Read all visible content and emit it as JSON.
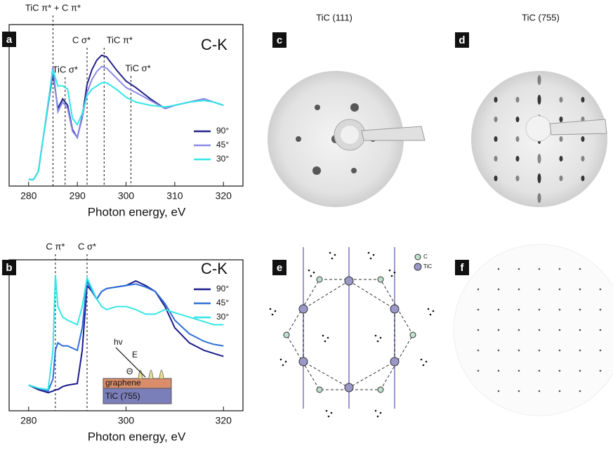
{
  "chart_data": [
    {
      "type": "line",
      "panel": "a",
      "title": "C-K",
      "x_label": "Photon energy, eV",
      "xlim": [
        276,
        324
      ],
      "ylim": [
        0,
        1
      ],
      "xticks": [
        280,
        290,
        300,
        310,
        320
      ],
      "legend": "right",
      "x": [
        280,
        281,
        282,
        283,
        284,
        285,
        286,
        287,
        288,
        289,
        290,
        291,
        292,
        293,
        294,
        295,
        296,
        297,
        298,
        300,
        302,
        305,
        308,
        310,
        313,
        316,
        318,
        320
      ],
      "series": [
        {
          "name": "90°",
          "color": "#22228a",
          "values": [
            0.04,
            0.04,
            0.09,
            0.3,
            0.5,
            0.7,
            0.48,
            0.54,
            0.5,
            0.35,
            0.3,
            0.43,
            0.63,
            0.72,
            0.78,
            0.81,
            0.8,
            0.76,
            0.72,
            0.65,
            0.61,
            0.54,
            0.48,
            0.5,
            0.52,
            0.54,
            0.52,
            0.5
          ]
        },
        {
          "name": "45°",
          "color": "#8a8ae8",
          "values": [
            0.04,
            0.04,
            0.09,
            0.3,
            0.5,
            0.74,
            0.46,
            0.52,
            0.48,
            0.34,
            0.3,
            0.42,
            0.58,
            0.66,
            0.71,
            0.74,
            0.73,
            0.7,
            0.67,
            0.61,
            0.58,
            0.53,
            0.48,
            0.5,
            0.52,
            0.54,
            0.52,
            0.5
          ]
        },
        {
          "name": "30°",
          "color": "#33e6e6",
          "values": [
            0.04,
            0.04,
            0.09,
            0.3,
            0.52,
            0.72,
            0.62,
            0.62,
            0.6,
            0.42,
            0.38,
            0.45,
            0.56,
            0.6,
            0.62,
            0.64,
            0.64,
            0.62,
            0.6,
            0.55,
            0.52,
            0.5,
            0.49,
            0.5,
            0.52,
            0.53,
            0.52,
            0.5
          ]
        }
      ],
      "annotations": [
        {
          "text": "TiC π* + C π*",
          "x": 285
        },
        {
          "text": "TiC σ*",
          "x": 287.5
        },
        {
          "text": "C σ*",
          "x": 292
        },
        {
          "text": "TiC π*",
          "x": 295.5
        },
        {
          "text": "TiC σ*",
          "x": 301
        }
      ]
    },
    {
      "type": "line",
      "panel": "b",
      "title": "C-K",
      "x_label": "Photon energy, eV",
      "xlim": [
        276,
        324
      ],
      "ylim": [
        0,
        1
      ],
      "xticks": [
        280,
        300,
        320
      ],
      "legend": "right",
      "x": [
        280,
        282,
        284,
        285,
        285.5,
        286,
        287,
        288,
        290,
        291,
        292,
        293,
        294,
        295,
        296,
        298,
        300,
        302,
        304,
        306,
        308,
        310,
        313,
        316,
        318,
        320
      ],
      "series": [
        {
          "name": "90°",
          "color": "#1a1a8c",
          "values": [
            0.17,
            0.14,
            0.12,
            0.13,
            0.14,
            0.14,
            0.16,
            0.17,
            0.18,
            0.4,
            0.83,
            0.79,
            0.74,
            0.79,
            0.81,
            0.82,
            0.83,
            0.86,
            0.83,
            0.79,
            0.69,
            0.55,
            0.45,
            0.4,
            0.38,
            0.36
          ]
        },
        {
          "name": "45°",
          "color": "#2e6fd6",
          "values": [
            0.17,
            0.15,
            0.13,
            0.21,
            0.4,
            0.45,
            0.43,
            0.43,
            0.4,
            0.55,
            0.86,
            0.79,
            0.74,
            0.79,
            0.81,
            0.82,
            0.83,
            0.84,
            0.82,
            0.79,
            0.71,
            0.6,
            0.51,
            0.46,
            0.44,
            0.43
          ]
        },
        {
          "name": "30°",
          "color": "#33e6e6",
          "values": [
            0.17,
            0.15,
            0.14,
            0.4,
            0.9,
            0.69,
            0.62,
            0.6,
            0.57,
            0.69,
            0.88,
            0.81,
            0.74,
            0.69,
            0.67,
            0.69,
            0.69,
            0.67,
            0.64,
            0.64,
            0.67,
            0.65,
            0.62,
            0.59,
            0.57,
            0.57
          ]
        }
      ],
      "annotations": [
        {
          "text": "C π*",
          "x": 285.5
        },
        {
          "text": "C σ*",
          "x": 292
        }
      ],
      "inset": {
        "photon": "hv",
        "field": "E",
        "angle": "Θ",
        "top_layer": "graphene",
        "bottom_layer": "TiC (755)"
      }
    }
  ],
  "panels": {
    "c": {
      "label": "c",
      "title": "TiC (111)"
    },
    "d": {
      "label": "d",
      "title": "TiC (755)"
    },
    "e": {
      "label": "e",
      "legend": [
        "C",
        "TiC"
      ]
    },
    "f": {
      "label": "f"
    }
  }
}
